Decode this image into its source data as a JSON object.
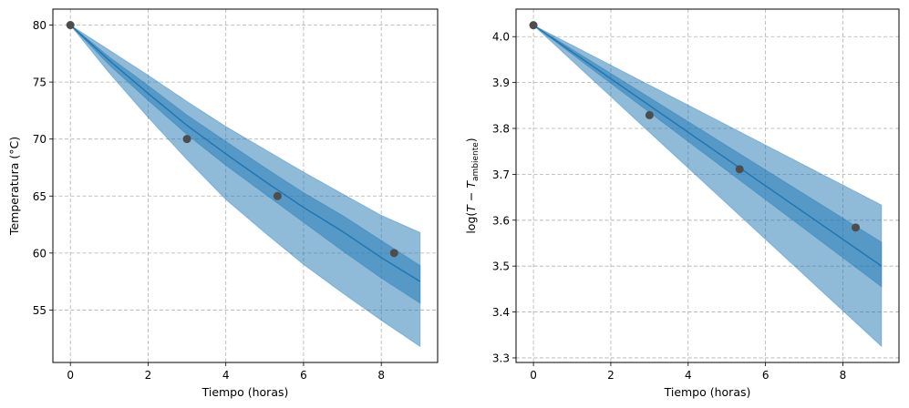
{
  "chart_data": [
    {
      "type": "line",
      "xlabel": "Tiempo (horas)",
      "ylabel": "Temperatura (°C)",
      "xlim": [
        -0.45,
        9.45
      ],
      "ylim": [
        50.4,
        81.4
      ],
      "xticks": [
        0,
        2,
        4,
        6,
        8
      ],
      "yticks": [
        55,
        60,
        65,
        70,
        75,
        80
      ],
      "grid": true,
      "colors": {
        "line": "#1f77b4",
        "band_outer": "#8ab8dc",
        "band_inner": "#5496c7",
        "points": "#4d4d4d",
        "grid": "#b0b0b0"
      },
      "x": [
        0,
        1,
        2,
        3,
        4,
        5,
        6,
        7,
        8,
        9
      ],
      "series": [
        {
          "values": [
            80.0,
            76.9,
            74.0,
            71.2,
            68.7,
            66.3,
            64.0,
            61.9,
            59.6,
            57.5
          ]
        }
      ],
      "band_outer": {
        "lower": [
          80.0,
          75.8,
          71.9,
          68.2,
          64.7,
          61.8,
          59.0,
          56.5,
          54.1,
          51.8
        ],
        "upper": [
          80.0,
          77.8,
          75.6,
          73.3,
          71.1,
          69.1,
          67.1,
          65.2,
          63.3,
          61.8
        ]
      },
      "band_inner": {
        "lower": [
          80.0,
          76.5,
          73.4,
          70.4,
          67.7,
          65.2,
          62.7,
          60.2,
          57.8,
          55.6
        ],
        "upper": [
          80.0,
          77.2,
          74.7,
          72.1,
          69.8,
          67.5,
          65.3,
          63.3,
          61.1,
          58.9
        ]
      },
      "points": {
        "x": [
          0,
          3.0,
          5.33,
          8.33
        ],
        "y": [
          80,
          70,
          65,
          60
        ]
      }
    },
    {
      "type": "line",
      "xlabel": "Tiempo (horas)",
      "ylabel_parts": {
        "pre": "log(",
        "var1": "T",
        "minus": " − ",
        "var2": "T",
        "sub": "ambiente",
        "post": ")"
      },
      "xlim": [
        -0.45,
        9.45
      ],
      "ylim": [
        3.29,
        4.06
      ],
      "xticks": [
        0,
        2,
        4,
        6,
        8
      ],
      "yticks": [
        3.3,
        3.4,
        3.5,
        3.6,
        3.7,
        3.8,
        3.9,
        4.0
      ],
      "ytick_labels": [
        "3.3",
        "3.4",
        "3.5",
        "3.6",
        "3.7",
        "3.8",
        "3.9",
        "4.0"
      ],
      "grid": true,
      "colors": {
        "line": "#1f77b4",
        "band_outer": "#8ab8dc",
        "band_inner": "#5496c7",
        "points": "#4d4d4d",
        "grid": "#b0b0b0"
      },
      "x": [
        0,
        9
      ],
      "series": [
        {
          "values": [
            4.025,
            3.5
          ]
        }
      ],
      "band_outer": {
        "lower": [
          4.025,
          3.325
        ],
        "upper": [
          4.025,
          3.633
        ]
      },
      "band_inner": {
        "lower": [
          4.025,
          3.455
        ],
        "upper": [
          4.025,
          3.552
        ]
      },
      "points": {
        "x": [
          0,
          3.0,
          5.33,
          8.33
        ],
        "y": [
          4.025,
          3.829,
          3.711,
          3.584
        ]
      }
    }
  ]
}
